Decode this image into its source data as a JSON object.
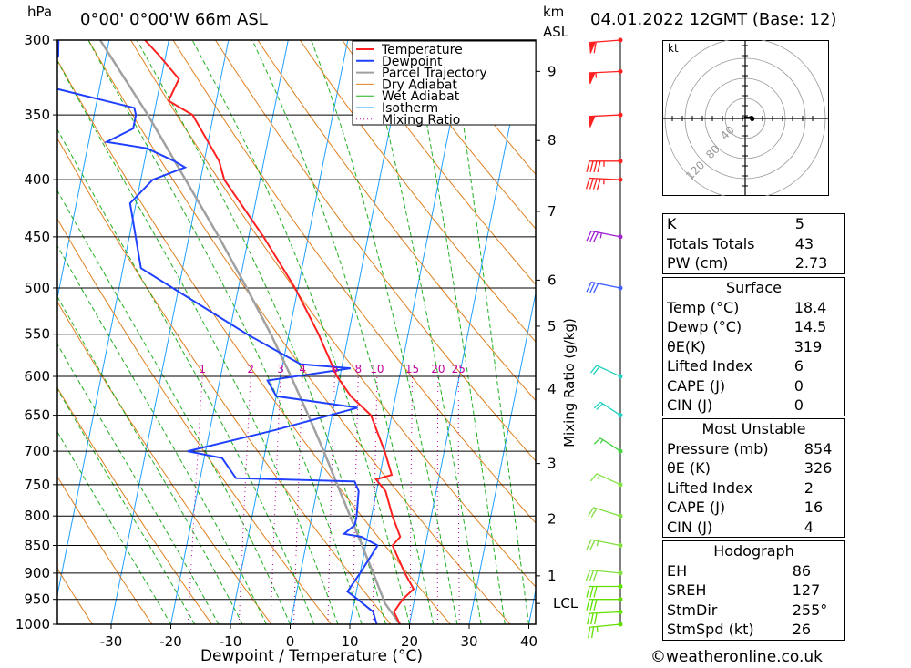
{
  "header": {
    "pressure_unit": "hPa",
    "location": "0°00' 0°00'W  66m  ASL",
    "height_unit": "km",
    "height_ref": "ASL",
    "datetime": "04.01.2022  12GMT  (Base: 12)",
    "copyright": "©weatheronline.co.uk"
  },
  "chart_data": {
    "type": "line",
    "subtype": "skew-T log-P diagram",
    "xlabel": "Dewpoint / Temperature (°C)",
    "ylabel_right": "Mixing Ratio (g/kg)",
    "pressure_levels": [
      1000,
      950,
      900,
      850,
      800,
      750,
      700,
      650,
      600,
      550,
      500,
      450,
      400,
      350,
      300
    ],
    "temperature_ticks": [
      -30,
      -20,
      -10,
      0,
      10,
      20,
      30,
      40
    ],
    "height_labels": [
      {
        "km": "9",
        "p": 320
      },
      {
        "km": "8",
        "p": 369
      },
      {
        "km": "7",
        "p": 427
      },
      {
        "km": "6",
        "p": 492
      },
      {
        "km": "5",
        "p": 541
      },
      {
        "km": "4",
        "p": 616
      },
      {
        "km": "3",
        "p": 718
      },
      {
        "km": "2",
        "p": 805
      },
      {
        "km": "1",
        "p": 905
      },
      {
        "km": "LCL",
        "p": 958
      }
    ],
    "mixing_ratio_labels": [
      "1",
      "2",
      "3",
      "4",
      "6",
      "8",
      "10",
      "15",
      "20",
      "25"
    ],
    "mixing_ratio_values": [
      1,
      2,
      3,
      4,
      6,
      8,
      10,
      15,
      20,
      25
    ],
    "legend": [
      "Temperature",
      "Dewpoint",
      "Parcel Trajectory",
      "Dry Adiabat",
      "Wet Adiabat",
      "Isotherm",
      "Mixing Ratio"
    ],
    "colors": {
      "temperature": "#ff2020",
      "dewpoint": "#2040ff",
      "parcel": "#a0a0a0",
      "dry_adiabat": "#e08020",
      "wet_adiabat": "#20b020",
      "isotherm": "#20a0ff",
      "mixing_ratio": "#c000a0"
    },
    "temperature_profile": [
      [
        1000,
        18.4
      ],
      [
        975,
        17.0
      ],
      [
        950,
        18.0
      ],
      [
        930,
        19.5
      ],
      [
        900,
        17.5
      ],
      [
        850,
        14.5
      ],
      [
        835,
        15.5
      ],
      [
        800,
        13.5
      ],
      [
        760,
        11.5
      ],
      [
        742,
        9.5
      ],
      [
        735,
        12.0
      ],
      [
        700,
        10.0
      ],
      [
        650,
        6.5
      ],
      [
        625,
        2.5
      ],
      [
        600,
        -0.5
      ],
      [
        550,
        -5.0
      ],
      [
        500,
        -10.5
      ],
      [
        450,
        -17.5
      ],
      [
        400,
        -26.0
      ],
      [
        385,
        -27.5
      ],
      [
        350,
        -33.5
      ],
      [
        340,
        -38.0
      ],
      [
        325,
        -37.0
      ],
      [
        310,
        -41.0
      ],
      [
        300,
        -44.0
      ]
    ],
    "dewpoint_profile": [
      [
        1000,
        14.5
      ],
      [
        975,
        13.5
      ],
      [
        950,
        10.5
      ],
      [
        935,
        8.5
      ],
      [
        900,
        10.0
      ],
      [
        850,
        12.0
      ],
      [
        835,
        9.0
      ],
      [
        830,
        6.0
      ],
      [
        815,
        7.5
      ],
      [
        800,
        7.5
      ],
      [
        760,
        7.0
      ],
      [
        745,
        6.0
      ],
      [
        740,
        -14.0
      ],
      [
        710,
        -17.0
      ],
      [
        700,
        -23.0
      ],
      [
        670,
        -9.0
      ],
      [
        640,
        4.0
      ],
      [
        625,
        -10.0
      ],
      [
        605,
        -12.0
      ],
      [
        590,
        1.5
      ],
      [
        585,
        -7.0
      ],
      [
        550,
        -17.0
      ],
      [
        500,
        -31.0
      ],
      [
        480,
        -37.0
      ],
      [
        420,
        -41.0
      ],
      [
        400,
        -38.0
      ],
      [
        390,
        -33.0
      ],
      [
        385,
        -35.0
      ],
      [
        375,
        -40.0
      ],
      [
        370,
        -47.0
      ],
      [
        360,
        -43.0
      ],
      [
        350,
        -43.0
      ],
      [
        345,
        -43.5
      ],
      [
        330,
        -59.0
      ],
      [
        320,
        -59.0
      ],
      [
        310,
        -58.0
      ],
      [
        300,
        -58.5
      ]
    ],
    "parcel_profile": [
      [
        1000,
        18.4
      ],
      [
        958,
        15.2
      ],
      [
        900,
        12.2
      ],
      [
        850,
        9.4
      ],
      [
        800,
        6.4
      ],
      [
        750,
        3.2
      ],
      [
        700,
        -0.2
      ],
      [
        650,
        -4.0
      ],
      [
        600,
        -8.2
      ],
      [
        550,
        -13.0
      ],
      [
        500,
        -18.6
      ],
      [
        450,
        -25.0
      ],
      [
        400,
        -32.5
      ],
      [
        350,
        -41.0
      ],
      [
        300,
        -51.5
      ]
    ],
    "wind_barbs": [
      {
        "p": 1000,
        "dir": 260,
        "spd": 25,
        "color": "#60e000"
      },
      {
        "p": 975,
        "dir": 265,
        "spd": 30,
        "color": "#60e000"
      },
      {
        "p": 950,
        "dir": 270,
        "spd": 30,
        "color": "#60e000"
      },
      {
        "p": 925,
        "dir": 270,
        "spd": 30,
        "color": "#60e000"
      },
      {
        "p": 900,
        "dir": 280,
        "spd": 30,
        "color": "#80e040"
      },
      {
        "p": 850,
        "dir": 290,
        "spd": 25,
        "color": "#80e040"
      },
      {
        "p": 800,
        "dir": 300,
        "spd": 20,
        "color": "#80e040"
      },
      {
        "p": 750,
        "dir": 310,
        "spd": 15,
        "color": "#80e040"
      },
      {
        "p": 700,
        "dir": 320,
        "spd": 15,
        "color": "#40d040"
      },
      {
        "p": 650,
        "dir": 320,
        "spd": 20,
        "color": "#20d0c0"
      },
      {
        "p": 600,
        "dir": 310,
        "spd": 20,
        "color": "#20d0c0"
      },
      {
        "p": 500,
        "dir": 290,
        "spd": 30,
        "color": "#4060ff"
      },
      {
        "p": 450,
        "dir": 290,
        "spd": 35,
        "color": "#a020d0"
      },
      {
        "p": 400,
        "dir": 275,
        "spd": 45,
        "color": "#ff2020"
      },
      {
        "p": 385,
        "dir": 270,
        "spd": 45,
        "color": "#ff2020"
      },
      {
        "p": 350,
        "dir": 265,
        "spd": 50,
        "color": "#ff2020"
      },
      {
        "p": 320,
        "dir": 265,
        "spd": 55,
        "color": "#ff2020"
      },
      {
        "p": 300,
        "dir": 262,
        "spd": 60,
        "color": "#ff2020"
      }
    ],
    "hodograph": {
      "unit_label": "kt",
      "ring_labels": [
        "40",
        "80",
        "120"
      ],
      "points": [
        [
          -5,
          -1
        ],
        [
          0,
          3
        ],
        [
          6,
          2
        ],
        [
          12,
          4
        ],
        [
          18,
          1
        ],
        [
          14,
          -1
        ]
      ]
    }
  },
  "indices": [
    {
      "label": "K",
      "value": "5"
    },
    {
      "label": "Totals Totals",
      "value": "43"
    },
    {
      "label": "PW (cm)",
      "value": "2.73"
    }
  ],
  "surface": {
    "title": "Surface",
    "rows": [
      {
        "label": "Temp (°C)",
        "value": "18.4"
      },
      {
        "label": "Dewp (°C)",
        "value": "14.5"
      },
      {
        "label": "θE(K)",
        "value": "319"
      },
      {
        "label": "Lifted Index",
        "value": "6"
      },
      {
        "label": "CAPE (J)",
        "value": "0"
      },
      {
        "label": "CIN (J)",
        "value": "0"
      }
    ]
  },
  "most_unstable": {
    "title": "Most Unstable",
    "rows": [
      {
        "label": "Pressure (mb)",
        "value": "854"
      },
      {
        "label": "θE (K)",
        "value": "326"
      },
      {
        "label": "Lifted Index",
        "value": "2"
      },
      {
        "label": "CAPE (J)",
        "value": "16"
      },
      {
        "label": "CIN (J)",
        "value": "4"
      }
    ]
  },
  "hodograph_table": {
    "title": "Hodograph",
    "rows": [
      {
        "label": "EH",
        "value": "86"
      },
      {
        "label": "SREH",
        "value": "127"
      },
      {
        "label": "StmDir",
        "value": "255°"
      },
      {
        "label": "StmSpd (kt)",
        "value": "26"
      }
    ]
  }
}
